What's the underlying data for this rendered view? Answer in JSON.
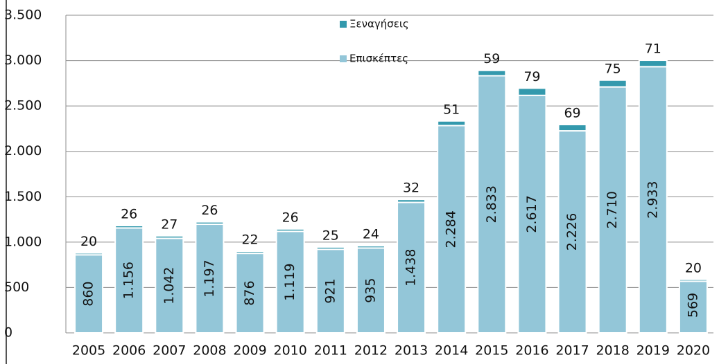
{
  "chart_data": {
    "type": "stacked_bar",
    "categories": [
      "2005",
      "2006",
      "2007",
      "2008",
      "2009",
      "2010",
      "2011",
      "2012",
      "2013",
      "2014",
      "2015",
      "2016",
      "2017",
      "2018",
      "2019",
      "2020"
    ],
    "series": [
      {
        "name": "Επισκέπτες",
        "color": "#93c6d8",
        "values": [
          860,
          1156,
          1042,
          1197,
          876,
          1119,
          921,
          935,
          1438,
          2284,
          2833,
          2617,
          2226,
          2710,
          2933,
          569
        ],
        "value_labels": [
          "860",
          "1.156",
          "1.042",
          "1.197",
          "876",
          "1.119",
          "921",
          "935",
          "1.438",
          "2.284",
          "2.833",
          "2.617",
          "2.226",
          "2.710",
          "2.933",
          "569"
        ]
      },
      {
        "name": "Ξεναγήσεις",
        "color": "#3399ad",
        "values": [
          20,
          26,
          27,
          26,
          22,
          26,
          25,
          24,
          32,
          51,
          59,
          79,
          69,
          75,
          71,
          20
        ]
      }
    ],
    "ylim": [
      0,
      3500
    ],
    "yticks": [
      0,
      500,
      {
        "value": 1000,
        "label": "1.000"
      },
      {
        "value": 1500,
        "label": "1.500"
      },
      {
        "value": 2000,
        "label": "2.000"
      },
      {
        "value": 2500,
        "label": "2.500"
      },
      {
        "value": 3000,
        "label": "3.000"
      },
      {
        "value": 3500,
        "label": "3.500"
      }
    ],
    "grid": true,
    "legend": "top"
  }
}
